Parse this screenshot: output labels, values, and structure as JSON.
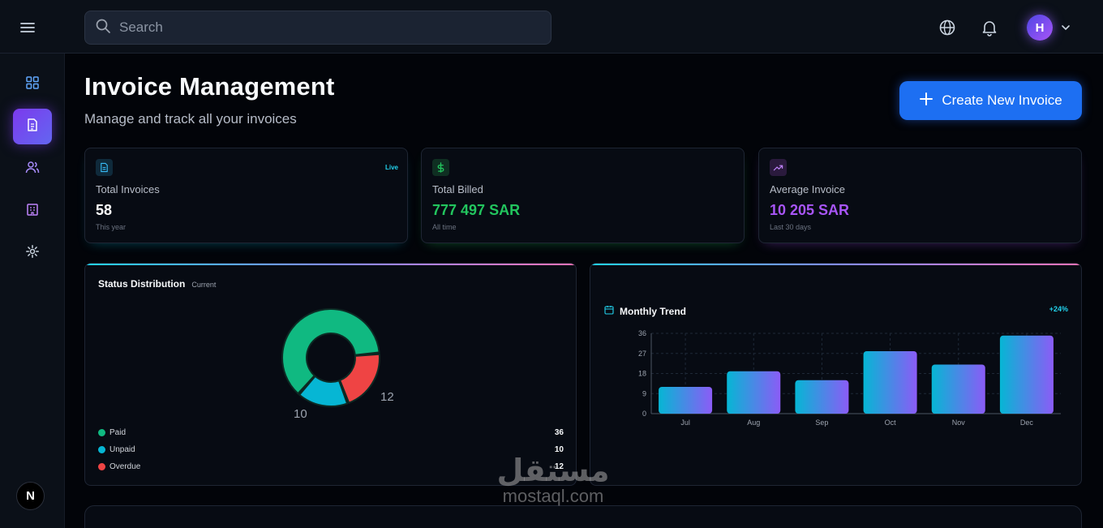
{
  "topbar": {
    "search_placeholder": "Search",
    "user_initial": "H",
    "icons": [
      "menu-icon",
      "search-icon",
      "globe-icon",
      "bell-icon",
      "chevron-down-icon"
    ]
  },
  "sidebar": {
    "items": [
      {
        "icon": "dashboard-icon",
        "active": false
      },
      {
        "icon": "invoice-icon",
        "active": true
      },
      {
        "icon": "users-icon",
        "active": false
      },
      {
        "icon": "building-icon",
        "active": false
      },
      {
        "icon": "settings-icon",
        "active": false
      }
    ],
    "badge": "N"
  },
  "header": {
    "title": "Invoice Management",
    "subtitle": "Manage and track all your invoices",
    "create_button": "Create New Invoice"
  },
  "stats": [
    {
      "label": "Total Invoices",
      "value": "58",
      "sub": "This year",
      "badge": "Live",
      "color": "#ffffff",
      "icon": "document-icon"
    },
    {
      "label": "Total Billed",
      "value": "777 497 SAR",
      "sub": "All time",
      "color": "#22c55e",
      "icon": "dollar-icon"
    },
    {
      "label": "Average Invoice",
      "value": "10 205 SAR",
      "sub": "Last 30 days",
      "color": "#a855f7",
      "icon": "trending-up-icon"
    }
  ],
  "status": {
    "title": "Status Distribution",
    "tag": "Current",
    "items": [
      {
        "label": "Paid",
        "value": "36",
        "color": "#10b981"
      },
      {
        "label": "Unpaid",
        "value": "10",
        "color": "#06b6d4"
      },
      {
        "label": "Overdue",
        "value": "12",
        "color": "#ef4444"
      }
    ],
    "donut_labels": [
      "12",
      "10"
    ]
  },
  "trend": {
    "title": "Monthly Trend",
    "change": "+24%"
  },
  "chart_data": {
    "type": "bar",
    "categories": [
      "Jul",
      "Aug",
      "Sep",
      "Oct",
      "Nov",
      "Dec"
    ],
    "values": [
      12,
      19,
      15,
      28,
      22,
      35
    ],
    "xlabel": "",
    "ylabel": "",
    "ylim": [
      0,
      36
    ],
    "yticks": [
      0,
      9,
      18,
      27,
      36
    ],
    "grid": true
  },
  "watermark": {
    "arabic": "مستقل",
    "latin": "mostaql.com"
  },
  "colors": {
    "accent": "#1d6ff2",
    "active_nav": "#7c3aed",
    "background": "#020409",
    "card": "#070b13"
  }
}
